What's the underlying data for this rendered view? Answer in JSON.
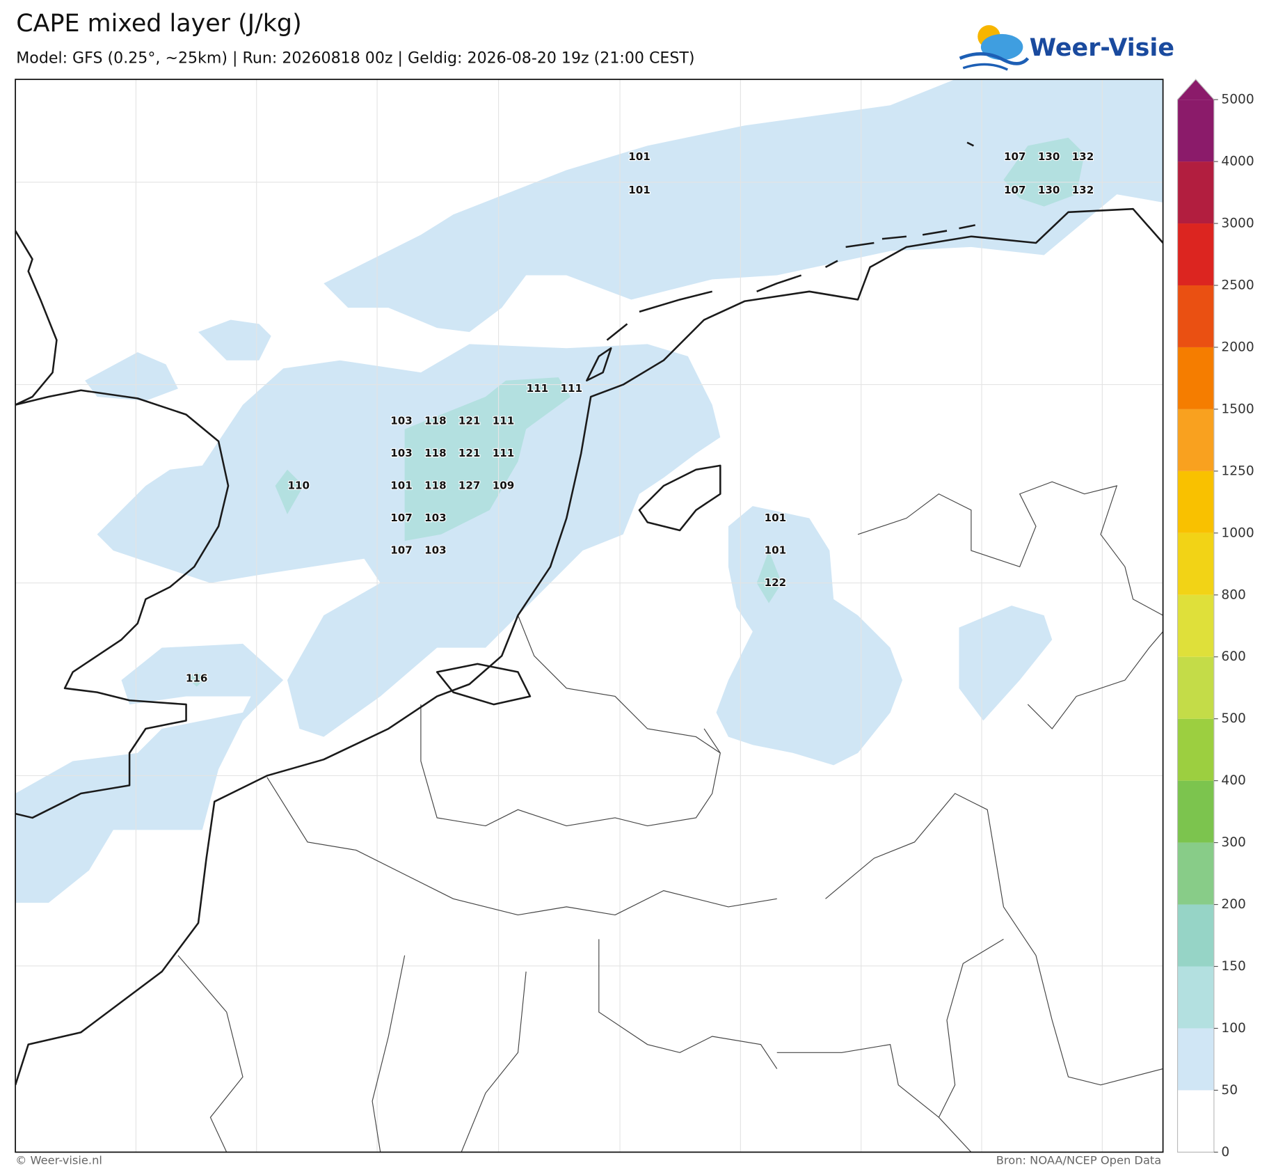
{
  "header": {
    "title": "CAPE mixed layer (J/kg)",
    "subtitle": "Model: GFS (0.25°, ~25km)  |  Run: 20260818 00z  |  Geldig: 2026-08-20 19z (21:00 CEST)",
    "logo": "Weer-Visie"
  },
  "map": {
    "labels": [
      101,
      101,
      107,
      130,
      132,
      107,
      130,
      132,
      111,
      111,
      103,
      118,
      121,
      111,
      103,
      118,
      121,
      111,
      110,
      101,
      118,
      127,
      109,
      107,
      103,
      101,
      107,
      103,
      101,
      122,
      116
    ]
  },
  "colorbar": {
    "ticks": [
      0,
      50,
      100,
      150,
      200,
      300,
      400,
      500,
      600,
      800,
      1000,
      1250,
      1500,
      2000,
      2500,
      3000,
      4000,
      5000
    ],
    "colors": [
      "#ffffff",
      "#d0e6f5",
      "#b3e0e0",
      "#96d4c6",
      "#88cc88",
      "#7cc44e",
      "#9ccf40",
      "#c4dc48",
      "#dfe03a",
      "#f2d316",
      "#f9c100",
      "#f9a11f",
      "#f57d00",
      "#ea5012",
      "#dc2520",
      "#b21e3f",
      "#8b1b6a"
    ],
    "extend_color": "#8b1b6a"
  },
  "footer": {
    "copyright": "© Weer-visie.nl",
    "source": "Bron: NOAA/NCEP Open Data"
  }
}
